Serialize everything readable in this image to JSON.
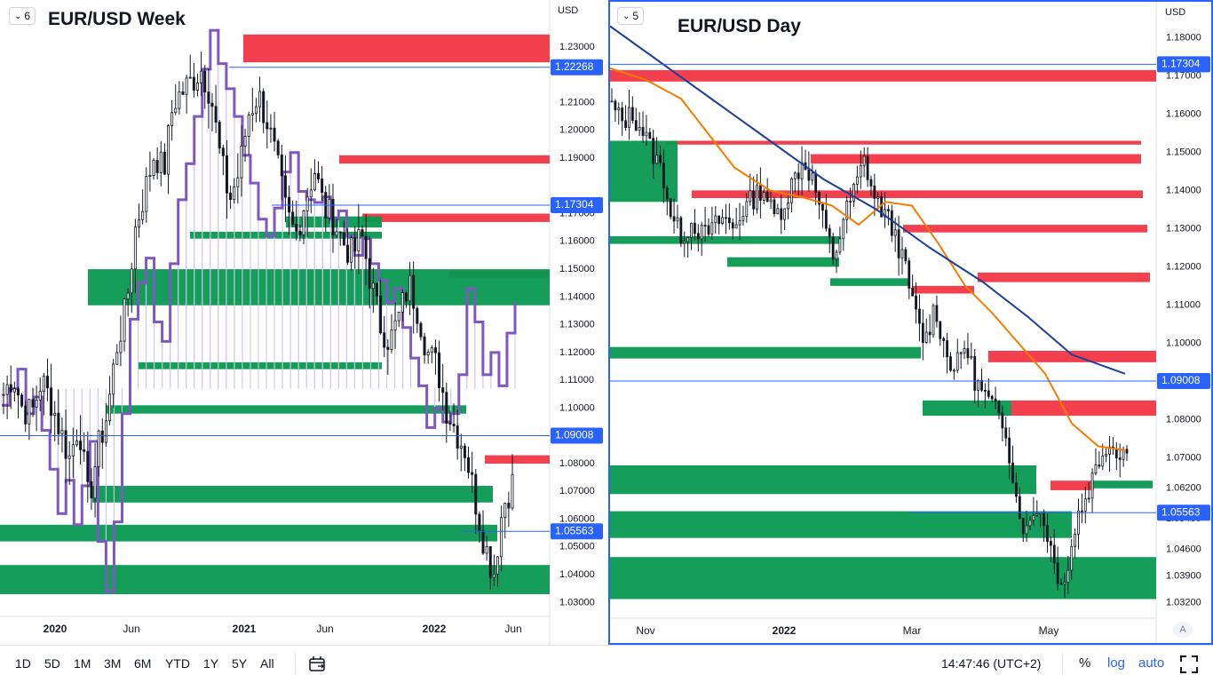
{
  "left": {
    "title": "EUR/USD Week",
    "badge": "6",
    "currency": "USD",
    "price_ticks": [
      "1.23000",
      "1.21000",
      "1.20000",
      "1.19000",
      "1.17000",
      "1.16000",
      "1.15000",
      "1.14000",
      "1.13000",
      "1.12000",
      "1.11000",
      "1.10000",
      "1.08000",
      "1.07000",
      "1.06000",
      "1.05000",
      "1.04000",
      "1.03000"
    ],
    "price_tick_values": [
      1.23,
      1.21,
      1.2,
      1.19,
      1.17,
      1.16,
      1.15,
      1.14,
      1.13,
      1.12,
      1.11,
      1.1,
      1.08,
      1.07,
      1.06,
      1.05,
      1.04,
      1.03
    ],
    "price_tags": [
      {
        "label": "1.22268",
        "value": 1.22268
      },
      {
        "label": "1.17304",
        "value": 1.17304
      },
      {
        "label": "1.09008",
        "value": 1.09008
      },
      {
        "label": "1.05563",
        "value": 1.05563
      }
    ],
    "time_labels": [
      {
        "label": "2020",
        "bold": true
      },
      {
        "label": "Jun",
        "bold": false
      },
      {
        "label": "2021",
        "bold": true
      },
      {
        "label": "Jun",
        "bold": false
      },
      {
        "label": "2022",
        "bold": true
      },
      {
        "label": "Jun",
        "bold": false
      }
    ]
  },
  "right": {
    "title": "EUR/USD Day",
    "badge": "5",
    "currency": "USD",
    "price_ticks": [
      "1.18000",
      "1.17000",
      "1.16000",
      "1.15000",
      "1.14000",
      "1.13000",
      "1.12000",
      "1.11000",
      "1.10000",
      "1.08000",
      "1.07000",
      "1.06200",
      "1.05400",
      "1.04600",
      "1.03900",
      "1.03200"
    ],
    "price_tick_values": [
      1.18,
      1.17,
      1.16,
      1.15,
      1.14,
      1.13,
      1.12,
      1.11,
      1.1,
      1.08,
      1.07,
      1.062,
      1.054,
      1.046,
      1.039,
      1.032
    ],
    "price_tags": [
      {
        "label": "1.17304",
        "value": 1.17304
      },
      {
        "label": "1.09008",
        "value": 1.09008
      },
      {
        "label": "1.05563",
        "value": 1.05563
      }
    ],
    "time_labels": [
      {
        "label": "Nov",
        "bold": false
      },
      {
        "label": "2022",
        "bold": true
      },
      {
        "label": "Mar",
        "bold": false
      },
      {
        "label": "May",
        "bold": false
      }
    ],
    "auto_label": "A"
  },
  "bottom": {
    "ranges": [
      "1D",
      "5D",
      "1M",
      "3M",
      "6M",
      "YTD",
      "1Y",
      "5Y",
      "All"
    ],
    "time": "14:47:46 (UTC+2)",
    "percent": "%",
    "log": "log",
    "auto": "auto"
  },
  "colors": {
    "up": "#131722",
    "down": "#131722",
    "red_zone": "#f23645",
    "green_zone": "#089950",
    "price_line": "#2962ff",
    "ma_fast": "#f57c00",
    "ma_slow": "#1c3f9e",
    "overlay_line": "#7e57c2",
    "overlay_fill": "#d1c4e9"
  },
  "chart_data": [
    {
      "type": "candlestick",
      "title": "EUR/USD Week",
      "x_range": [
        "2019-09",
        "2022-06"
      ],
      "ylim": [
        1.025,
        1.245
      ],
      "series": [
        {
          "name": "EUR/USD Week",
          "close_path": [
            1.105,
            1.112,
            1.1,
            1.098,
            1.11,
            1.103,
            1.092,
            1.082,
            1.095,
            1.066,
            1.085,
            1.098,
            1.122,
            1.136,
            1.165,
            1.178,
            1.192,
            1.185,
            1.21,
            1.214,
            1.218,
            1.222,
            1.213,
            1.19,
            1.175,
            1.185,
            1.206,
            1.213,
            1.203,
            1.188,
            1.17,
            1.162,
            1.175,
            1.186,
            1.172,
            1.168,
            1.16,
            1.155,
            1.162,
            1.145,
            1.13,
            1.124,
            1.133,
            1.145,
            1.135,
            1.12,
            1.115,
            1.1,
            1.092,
            1.085,
            1.068,
            1.052,
            1.04,
            1.065,
            1.073
          ]
        }
      ],
      "zones": [
        {
          "kind": "supply",
          "from": 1.2245,
          "to": 1.2345
        },
        {
          "kind": "supply",
          "from": 1.188,
          "to": 1.191
        },
        {
          "kind": "supply",
          "from": 1.167,
          "to": 1.17
        },
        {
          "kind": "supply",
          "from": 1.147,
          "to": 1.1495
        },
        {
          "kind": "supply",
          "from": 1.08,
          "to": 1.083
        },
        {
          "kind": "demand",
          "from": 1.137,
          "to": 1.15
        },
        {
          "kind": "demand",
          "from": 1.165,
          "to": 1.169
        },
        {
          "kind": "demand",
          "from": 1.161,
          "to": 1.1635
        },
        {
          "kind": "demand",
          "from": 1.114,
          "to": 1.1165
        },
        {
          "kind": "demand",
          "from": 1.098,
          "to": 1.101
        },
        {
          "kind": "demand",
          "from": 1.066,
          "to": 1.072
        },
        {
          "kind": "demand",
          "from": 1.052,
          "to": 1.058
        },
        {
          "kind": "demand",
          "from": 1.033,
          "to": 1.0435
        }
      ],
      "horizontal_lines": [
        1.22268,
        1.17304,
        1.09008,
        1.05563
      ]
    },
    {
      "type": "candlestick",
      "title": "EUR/USD Day",
      "x_range": [
        "2021-10",
        "2022-06"
      ],
      "ylim": [
        1.028,
        1.188
      ],
      "series": [
        {
          "name": "EUR/USD Day",
          "close_path": [
            1.162,
            1.158,
            1.16,
            1.156,
            1.15,
            1.145,
            1.132,
            1.128,
            1.132,
            1.128,
            1.13,
            1.133,
            1.13,
            1.135,
            1.138,
            1.141,
            1.133,
            1.136,
            1.143,
            1.148,
            1.142,
            1.131,
            1.122,
            1.133,
            1.14,
            1.148,
            1.138,
            1.134,
            1.129,
            1.12,
            1.108,
            1.1,
            1.11,
            1.098,
            1.093,
            1.1,
            1.09,
            1.086,
            1.082,
            1.078,
            1.06,
            1.05,
            1.058,
            1.052,
            1.04,
            1.038,
            1.054,
            1.06,
            1.068,
            1.074,
            1.072,
            1.072
          ]
        }
      ],
      "moving_averages": [
        "fast",
        "slow"
      ],
      "zones": [
        {
          "kind": "supply",
          "from": 1.1685,
          "to": 1.1715
        },
        {
          "kind": "supply",
          "from": 1.152,
          "to": 1.153
        },
        {
          "kind": "supply",
          "from": 1.147,
          "to": 1.1495
        },
        {
          "kind": "supply",
          "from": 1.138,
          "to": 1.14
        },
        {
          "kind": "supply",
          "from": 1.129,
          "to": 1.131
        },
        {
          "kind": "supply",
          "from": 1.116,
          "to": 1.1185
        },
        {
          "kind": "supply",
          "from": 1.113,
          "to": 1.115
        },
        {
          "kind": "supply",
          "from": 1.095,
          "to": 1.098
        },
        {
          "kind": "supply",
          "from": 1.081,
          "to": 1.085
        },
        {
          "kind": "supply",
          "from": 1.0615,
          "to": 1.064
        },
        {
          "kind": "demand",
          "from": 1.137,
          "to": 1.153
        },
        {
          "kind": "demand",
          "from": 1.126,
          "to": 1.128
        },
        {
          "kind": "demand",
          "from": 1.12,
          "to": 1.1225
        },
        {
          "kind": "demand",
          "from": 1.115,
          "to": 1.117
        },
        {
          "kind": "demand",
          "from": 1.096,
          "to": 1.099
        },
        {
          "kind": "demand",
          "from": 1.081,
          "to": 1.085
        },
        {
          "kind": "demand",
          "from": 1.062,
          "to": 1.064
        },
        {
          "kind": "demand",
          "from": 1.0605,
          "to": 1.068
        },
        {
          "kind": "demand",
          "from": 1.049,
          "to": 1.056
        },
        {
          "kind": "demand",
          "from": 1.033,
          "to": 1.044
        }
      ],
      "horizontal_lines": [
        1.17304,
        1.09008,
        1.05563
      ]
    }
  ]
}
